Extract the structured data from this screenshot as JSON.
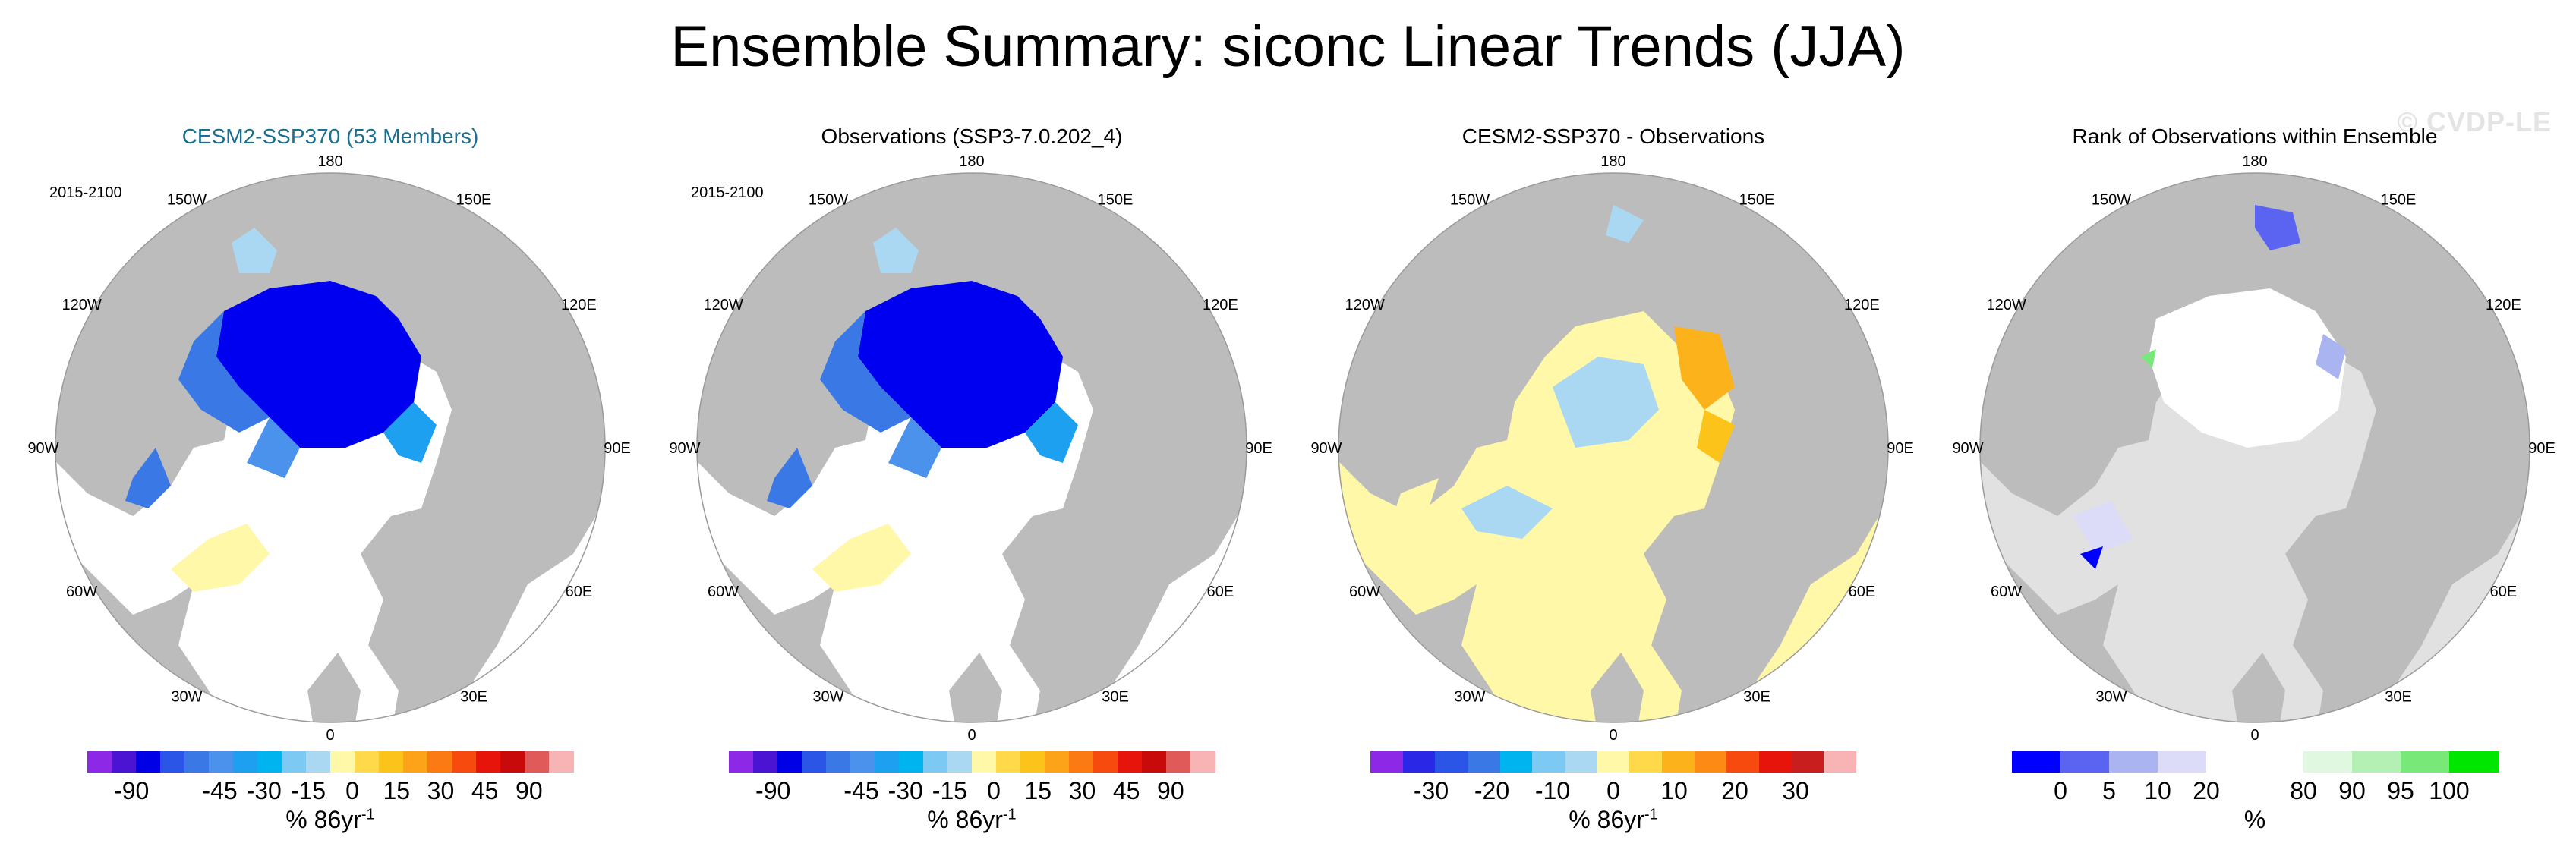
{
  "title": "Ensemble Summary: siconc Linear Trends (JJA)",
  "watermark": "© CVDP-LE",
  "lon_labels": [
    "180",
    "150E",
    "120E",
    "90E",
    "60E",
    "30E",
    "0",
    "30W",
    "60W",
    "90W",
    "120W",
    "150W"
  ],
  "colors": {
    "land": "#bcbcbc",
    "ocean": "#ffffff",
    "ice_dark": "#0000f0",
    "ice_light": "#bde3f5",
    "yellow": "#fff8a8",
    "orange": "#f7a81a",
    "rank_gray": "#e1e1e1"
  },
  "panels": [
    {
      "title": "CESM2-SSP370 (53 Members)",
      "title_color": "#1a6e8f",
      "period": "2015-2100",
      "colorbar": {
        "colors": [
          "#8c28e6",
          "#4a14d2",
          "#0000e6",
          "#2a55e6",
          "#3a78e6",
          "#4a92ec",
          "#1ea0f0",
          "#00b4f0",
          "#7ccaf4",
          "#aad8f2",
          "#fff8a8",
          "#ffd94a",
          "#fcc31a",
          "#fca31a",
          "#fc7a14",
          "#f64a0e",
          "#e6140a",
          "#c80a0a",
          "#e05a5a",
          "#f8b4b4"
        ],
        "labels": [
          "-90",
          "-45",
          "-30",
          "-15",
          "0",
          "15",
          "30",
          "45",
          "90"
        ],
        "label_positions": [
          1,
          3,
          4,
          5,
          6,
          7,
          8,
          9,
          10
        ],
        "units": "% 86yr",
        "units_sup": "-1"
      }
    },
    {
      "title": "Observations (SSP3-7.0.202_4)",
      "title_color": "#000000",
      "period": "2015-2100",
      "colorbar": {
        "colors": [
          "#8c28e6",
          "#4a14d2",
          "#0000e6",
          "#2a55e6",
          "#3a78e6",
          "#4a92ec",
          "#1ea0f0",
          "#00b4f0",
          "#7ccaf4",
          "#aad8f2",
          "#fff8a8",
          "#ffd94a",
          "#fcc31a",
          "#fca31a",
          "#fc7a14",
          "#f64a0e",
          "#e6140a",
          "#c80a0a",
          "#e05a5a",
          "#f8b4b4"
        ],
        "labels": [
          "-90",
          "-45",
          "-30",
          "-15",
          "0",
          "15",
          "30",
          "45",
          "90"
        ],
        "label_positions": [
          1,
          3,
          4,
          5,
          6,
          7,
          8,
          9,
          10
        ],
        "units": "% 86yr",
        "units_sup": "-1"
      }
    },
    {
      "title": "CESM2-SSP370 - Observations",
      "title_color": "#000000",
      "period": "",
      "colorbar": {
        "colors": [
          "#8c28e6",
          "#2a28e6",
          "#2a55e6",
          "#3a78e6",
          "#00b4f0",
          "#7ccaf4",
          "#aad8f2",
          "#fff8a8",
          "#ffd94a",
          "#fcb21a",
          "#fc8a14",
          "#f64a0e",
          "#e6140a",
          "#c81e1e",
          "#f8b4b4"
        ],
        "labels": [
          "-30",
          "-20",
          "-10",
          "0",
          "10",
          "20",
          "30"
        ],
        "label_positions": [
          1,
          2,
          3,
          4,
          5,
          6,
          7
        ],
        "units": "% 86yr",
        "units_sup": "-1"
      }
    },
    {
      "title": "Rank of Observations within Ensemble",
      "title_color": "#000000",
      "period": "",
      "colorbar": {
        "colors": [
          "#0000ff",
          "#5a64f0",
          "#aab4f0",
          "#dcdcf8",
          "#ffffff",
          "#ffffff",
          "#e0f8e0",
          "#b4f0b4",
          "#78e878",
          "#00e600"
        ],
        "labels": [
          "0",
          "5",
          "10",
          "20",
          "80",
          "90",
          "95",
          "100"
        ],
        "label_positions": [
          1,
          2,
          3,
          4,
          6,
          7,
          8,
          9
        ],
        "units": "%",
        "units_sup": ""
      }
    }
  ]
}
